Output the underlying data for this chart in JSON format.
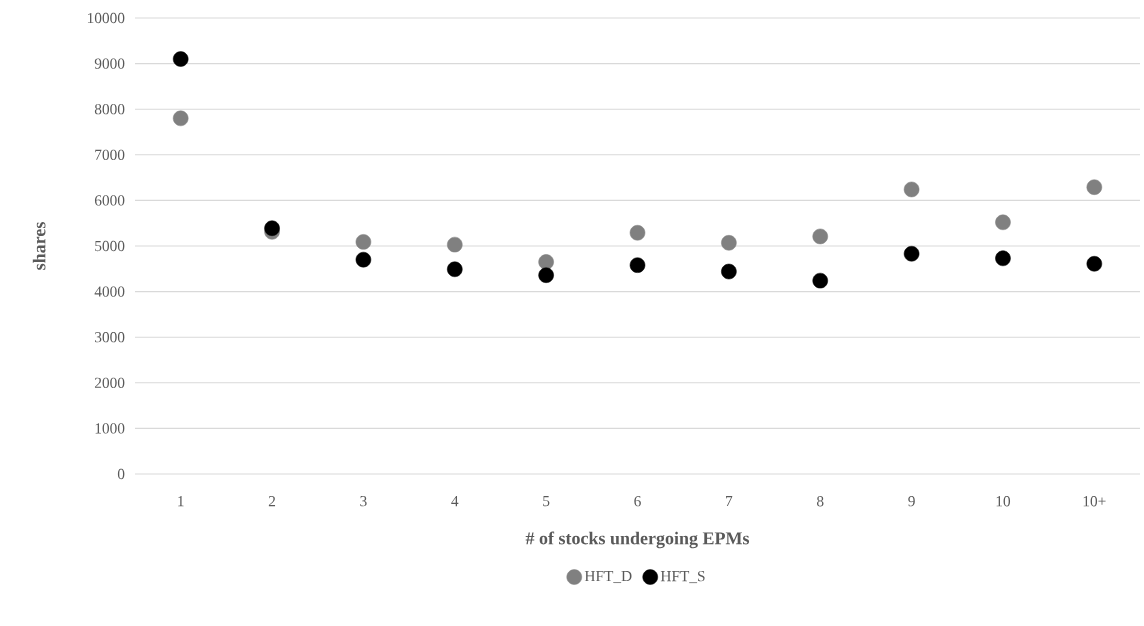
{
  "chart_data": {
    "type": "scatter",
    "xlabel": "# of stocks undergoing EPMs",
    "ylabel": "shares",
    "categories": [
      "1",
      "2",
      "3",
      "4",
      "5",
      "6",
      "7",
      "8",
      "9",
      "10",
      "10+"
    ],
    "series": [
      {
        "name": "HFT_D",
        "color": "#808080",
        "values": [
          7800,
          5310,
          5090,
          5030,
          4650,
          5290,
          5070,
          5210,
          6240,
          5520,
          6290
        ]
      },
      {
        "name": "HFT_S",
        "color": "#000000",
        "values": [
          9100,
          5390,
          4700,
          4490,
          4360,
          4580,
          4440,
          4240,
          4830,
          4730,
          4610
        ]
      }
    ],
    "ylim": [
      0,
      10000
    ],
    "yticks": [
      0,
      1000,
      2000,
      3000,
      4000,
      5000,
      6000,
      7000,
      8000,
      9000,
      10000
    ],
    "grid": "y",
    "legend": "bottom",
    "marker": "circle"
  }
}
